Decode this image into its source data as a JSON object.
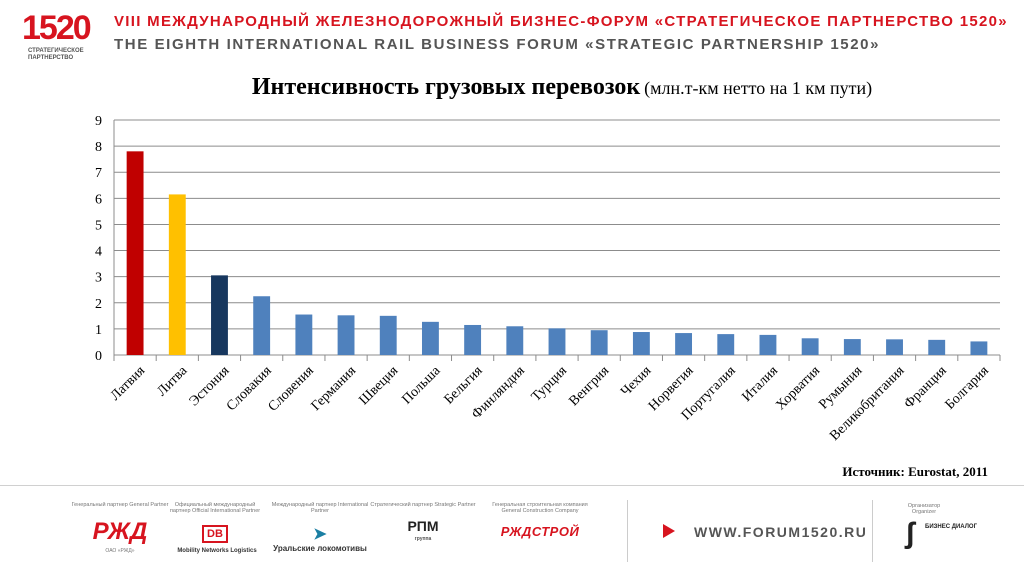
{
  "header": {
    "logo_number": "1520",
    "logo_subtitle": "СТРАТЕГИЧЕСКОЕ ПАРТНЕРСТВО",
    "forum_ru": "VIII МЕЖДУНАРОДНЫЙ ЖЕЛЕЗНОДОРОЖНЫЙ БИЗНЕС-ФОРУМ «СТРАТЕГИЧЕСКОЕ ПАРТНЕРСТВО 1520»",
    "forum_en": "THE EIGHTH INTERNATIONAL RAIL BUSINESS FORUM «STRATEGIC PARTNERSHIP 1520»"
  },
  "colors": {
    "brand_red": "#d7141f",
    "bar_latvia": "#c00000",
    "bar_lithuania": "#ffc000",
    "bar_estonia": "#17375e",
    "bar_default": "#4f81bd"
  },
  "chart_data": {
    "type": "bar",
    "title": "Интенсивность грузовых перевозок",
    "title_unit": "(млн.т-км нетто на 1 км пути)",
    "categories": [
      "Латвия",
      "Литва",
      "Эстония",
      "Словакия",
      "Словения",
      "Германия",
      "Швеция",
      "Польша",
      "Бельгия",
      "Финляндия",
      "Турция",
      "Венгрия",
      "Чехия",
      "Норвегия",
      "Португалия",
      "Италия",
      "Хорватия",
      "Румыния",
      "Великобритания",
      "Франция",
      "Болгария"
    ],
    "values": [
      7.8,
      6.15,
      3.05,
      2.25,
      1.55,
      1.52,
      1.5,
      1.27,
      1.15,
      1.1,
      1.02,
      0.95,
      0.88,
      0.84,
      0.8,
      0.77,
      0.64,
      0.61,
      0.6,
      0.58,
      0.52
    ],
    "bar_colors": [
      "#c00000",
      "#ffc000",
      "#17375e",
      "#4f81bd",
      "#4f81bd",
      "#4f81bd",
      "#4f81bd",
      "#4f81bd",
      "#4f81bd",
      "#4f81bd",
      "#4f81bd",
      "#4f81bd",
      "#4f81bd",
      "#4f81bd",
      "#4f81bd",
      "#4f81bd",
      "#4f81bd",
      "#4f81bd",
      "#4f81bd",
      "#4f81bd",
      "#4f81bd"
    ],
    "yticks": [
      "0",
      "1",
      "2",
      "3",
      "4",
      "5",
      "6",
      "7",
      "8",
      "9"
    ],
    "ylim": [
      0,
      9
    ],
    "grid": true,
    "source": "Источник: Eurostat, 2011"
  },
  "footer": {
    "partners": [
      {
        "caption": "Генеральный партнер General Partner",
        "logo_text": "РЖД",
        "sub": "ОАО «РЖД»"
      },
      {
        "caption": "Официальный международный партнер Official International Partner",
        "logo_text": "DB",
        "sub": "Mobility Networks Logistics"
      },
      {
        "caption": "Международный партнер International Partner",
        "logo_text": "Уральские локомотивы",
        "sub": ""
      },
      {
        "caption": "Стратегический партнер Strategic Partner",
        "logo_text": "РПМ",
        "sub": "группа"
      },
      {
        "caption": "Генеральная строительная компания General Construction Company",
        "logo_text": "РЖДСТРОЙ",
        "sub": ""
      }
    ],
    "website": "WWW.FORUM1520.RU",
    "organizer_caption": "Организатор Organizer",
    "organizer_name": "БИЗНЕС ДИАЛОГ"
  }
}
